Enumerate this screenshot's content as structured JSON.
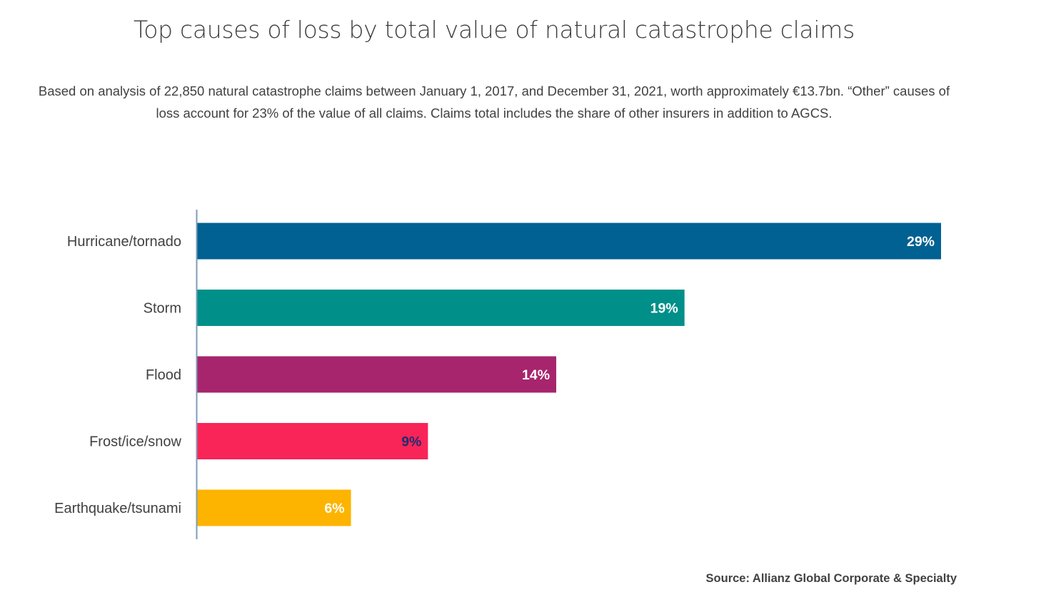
{
  "header": {
    "title": "Top causes of loss by total value of natural catastrophe claims",
    "subtitle_line1": "Based on analysis of 22,850 natural catastrophe claims between January 1, 2017, and December 31, 2021, worth approximately €13.7bn. “Other” causes of",
    "subtitle_line2": "loss account for 23% of the value of all claims. Claims total includes the share of other insurers in addition to AGCS."
  },
  "footer": {
    "source": "Source: Allianz Global Corporate & Specialty"
  },
  "colors": {
    "axis": "#7f9bb8",
    "label_light": "#ffffff",
    "label_dark": "#1f2d6e"
  },
  "chart_data": {
    "type": "bar",
    "orientation": "horizontal",
    "title": "Top causes of loss by total value of natural catastrophe claims",
    "xlabel": "",
    "ylabel": "",
    "unit": "%",
    "xlim": [
      0,
      29
    ],
    "grid": false,
    "legend": "none",
    "categories": [
      "Hurricane/tornado",
      "Storm",
      "Flood",
      "Frost/ice/snow",
      "Earthquake/tsunami"
    ],
    "values": [
      29,
      19,
      14,
      9,
      6
    ],
    "data_labels": [
      "29%",
      "19%",
      "14%",
      "9%",
      "6%"
    ],
    "bar_colors": [
      "#006192",
      "#009089",
      "#a7256c",
      "#f92458",
      "#fdb400"
    ],
    "label_colors": [
      "#ffffff",
      "#ffffff",
      "#ffffff",
      "#1f2d6e",
      "#ffffff"
    ]
  }
}
